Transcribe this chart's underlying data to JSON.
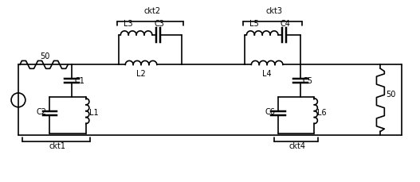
{
  "labels": {
    "source_res": "50",
    "load_res": "50",
    "L1": "L1",
    "L2": "L2",
    "L3": "L3",
    "L4": "L4",
    "L5": "L5",
    "L6": "L6",
    "C1": "C1",
    "C2": "C2",
    "C3": "C3",
    "C4": "C4",
    "C5": "C5",
    "C6": "C6",
    "ckt1": "ckt1",
    "ckt2": "ckt2",
    "ckt3": "ckt3",
    "ckt4": "ckt4"
  },
  "line_color": "#000000",
  "bg_color": "#ffffff",
  "lw": 1.2
}
